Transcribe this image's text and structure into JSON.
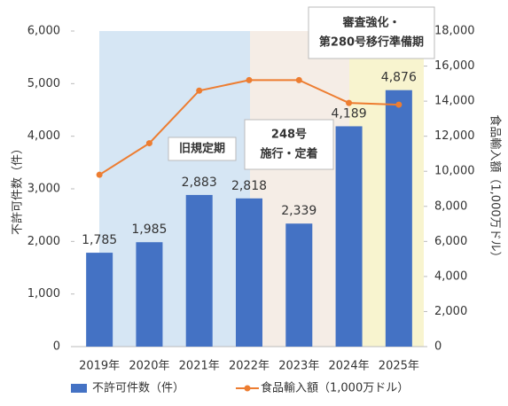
{
  "chart_data": {
    "type": "bar",
    "categories": [
      "2019年",
      "2020年",
      "2021年",
      "2022年",
      "2023年",
      "2024年",
      "2025年"
    ],
    "series": [
      {
        "name": "不許可件数（件）",
        "color": "#4472c4",
        "type": "bar",
        "values": [
          1785,
          1985,
          2883,
          2818,
          2339,
          4189,
          4876
        ],
        "value_labels": [
          "1,785",
          "1,985",
          "2,883",
          "2,818",
          "2,339",
          "4,189",
          "4,876"
        ]
      },
      {
        "name": "食品輸入額（1,000万ドル）",
        "color": "#ed7d31",
        "type": "line",
        "axis": "y2",
        "values": [
          9800,
          11600,
          14600,
          15200,
          15200,
          13900,
          13800
        ]
      }
    ],
    "ylabel": "不許可件数（件）",
    "y2label": "食品輸入額（1,000万ドル）",
    "ylim": [
      0,
      6000
    ],
    "yticks": [
      0,
      {
        "value": 1000,
        "label": "1,000"
      },
      {
        "value": 2000,
        "label": "2,000"
      },
      {
        "value": 3000,
        "label": "3,000"
      },
      {
        "value": 4000,
        "label": "4,000"
      },
      {
        "value": 5000,
        "label": "5,000"
      },
      {
        "value": 6000,
        "label": "6,000"
      }
    ],
    "y2lim": [
      0,
      18000
    ],
    "y2ticks": [
      0,
      {
        "value": 2000,
        "label": "2,000"
      },
      {
        "value": 4000,
        "label": "4,000"
      },
      {
        "value": 6000,
        "label": "6,000"
      },
      {
        "value": 8000,
        "label": "8,000"
      },
      {
        "value": 10000,
        "label": "10,000"
      },
      {
        "value": 12000,
        "label": "12,000"
      },
      {
        "value": 14000,
        "label": "14,000"
      },
      {
        "value": 16000,
        "label": "16,000"
      },
      {
        "value": 18000,
        "label": "18,000"
      }
    ],
    "annotations": [
      {
        "lines": [
          "旧規定期"
        ]
      },
      {
        "lines": [
          "248号",
          "施行・定着"
        ]
      },
      {
        "lines": [
          "審査強化・",
          "第280号移行準備期"
        ]
      }
    ]
  }
}
